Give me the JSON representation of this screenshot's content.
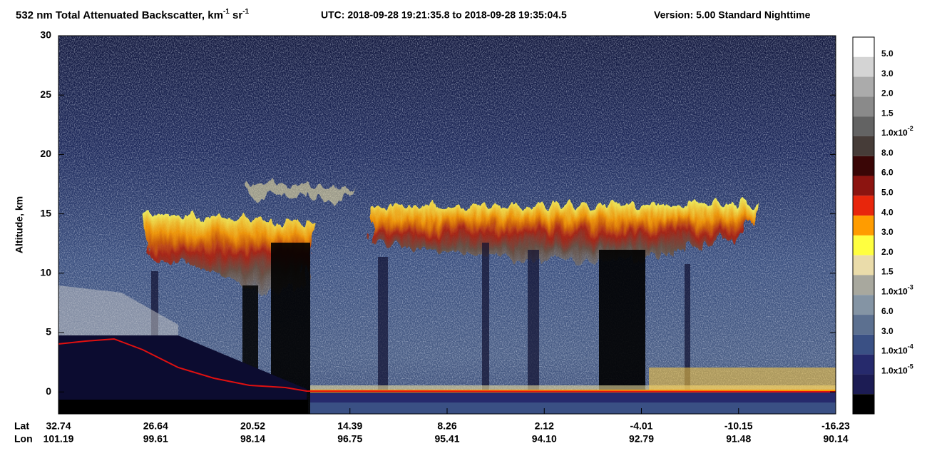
{
  "chart_data": {
    "type": "curtain",
    "title_parts": [
      "532 nm Total Attenuated Backscatter, km",
      "-1",
      " sr",
      "-1"
    ],
    "time_range": "UTC:  2018-09-28 19:21:35.8  to  2018-09-28 19:35:04.5",
    "version": "Version: 5.00  Standard  Nighttime",
    "ylabel": "Altitude, km",
    "ylim": [
      -1.85,
      30
    ],
    "yticks": [
      0,
      5,
      10,
      15,
      20,
      25,
      30
    ],
    "x_rows": [
      {
        "name": "Lat",
        "labels": [
          "32.74",
          "26.64",
          "20.52",
          "14.39",
          "8.26",
          "2.12",
          "-4.01",
          "-10.15",
          "-16.23"
        ]
      },
      {
        "name": "Lon",
        "labels": [
          "101.19",
          "99.61",
          "98.14",
          "96.75",
          "95.41",
          "94.10",
          "92.79",
          "91.48",
          "90.14"
        ]
      }
    ],
    "colorbar": {
      "colors": [
        "#ffffff",
        "#d4d4d4",
        "#ababab",
        "#8a8a8a",
        "#636363",
        "#463c38",
        "#3a0606",
        "#8c1410",
        "#e8260c",
        "#ff9c00",
        "#ffff40",
        "#eadcaa",
        "#a8a89e",
        "#8494a4",
        "#5c7090",
        "#3a5084",
        "#262a6c",
        "#1c1c54",
        "#000000"
      ],
      "labels": [
        "5.0",
        "3.0",
        "2.0",
        "1.5",
        {
          "base": "1.0x10",
          "exp": "-2"
        },
        "8.0",
        "6.0",
        "5.0",
        "4.0",
        "3.0",
        "2.0",
        "1.5",
        {
          "base": "1.0x10",
          "exp": "-3"
        },
        "6.0",
        "3.0",
        {
          "base": "1.0x10",
          "exp": "-4"
        },
        {
          "base": "1.0x10",
          "exp": "-5"
        }
      ]
    }
  }
}
